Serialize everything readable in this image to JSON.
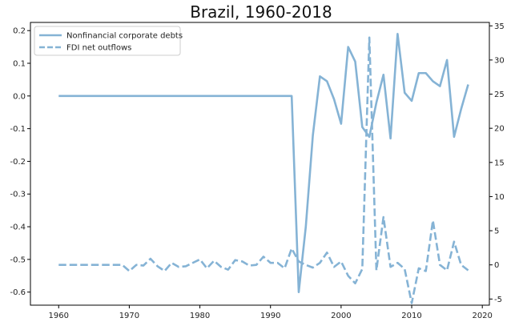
{
  "chart_data": {
    "type": "line",
    "title": "Brazil, 1960-2018",
    "x_ticks": [
      1960,
      1970,
      1980,
      1990,
      2000,
      2010,
      2020
    ],
    "xlim": [
      1956,
      2021
    ],
    "y_left": {
      "lim": [
        -0.64,
        0.225
      ],
      "ticks": [
        -0.6,
        -0.5,
        -0.4,
        -0.3,
        -0.2,
        -0.1,
        0.0,
        0.1,
        0.2
      ]
    },
    "y_right": {
      "lim": [
        -5.9,
        35.5
      ],
      "ticks": [
        -5,
        0,
        5,
        10,
        15,
        20,
        25,
        30,
        35
      ]
    },
    "legend_position": "upper-left",
    "color": "#85b3d5",
    "series": [
      {
        "name": "Nonfinancial corporate debts",
        "axis": "left",
        "style": "solid",
        "x": [
          1960,
          1961,
          1962,
          1963,
          1964,
          1965,
          1966,
          1967,
          1968,
          1969,
          1970,
          1971,
          1972,
          1973,
          1974,
          1975,
          1976,
          1977,
          1978,
          1979,
          1980,
          1981,
          1982,
          1983,
          1984,
          1985,
          1986,
          1987,
          1988,
          1989,
          1990,
          1991,
          1992,
          1993,
          1994,
          1995,
          1996,
          1997,
          1998,
          1999,
          2000,
          2001,
          2002,
          2003,
          2004,
          2005,
          2006,
          2007,
          2008,
          2009,
          2010,
          2011,
          2012,
          2013,
          2014,
          2015,
          2016,
          2017,
          2018
        ],
        "y": [
          0,
          0,
          0,
          0,
          0,
          0,
          0,
          0,
          0,
          0,
          0,
          0,
          0,
          0,
          0,
          0,
          0,
          0,
          0,
          0,
          0,
          0,
          0,
          0,
          0,
          0,
          0,
          0,
          0,
          0,
          0,
          0,
          0,
          0,
          -0.6,
          -0.4,
          -0.12,
          0.06,
          0.045,
          -0.01,
          -0.085,
          0.15,
          0.105,
          -0.095,
          -0.125,
          -0.02,
          0.065,
          -0.13,
          0.19,
          0.01,
          -0.015,
          0.07,
          0.07,
          0.045,
          0.03,
          0.11,
          -0.125,
          -0.04,
          0.035
        ]
      },
      {
        "name": "FDI net outflows",
        "axis": "right",
        "style": "dashed",
        "x": [
          1960,
          1961,
          1962,
          1963,
          1964,
          1965,
          1966,
          1967,
          1968,
          1969,
          1970,
          1971,
          1972,
          1973,
          1974,
          1975,
          1976,
          1977,
          1978,
          1979,
          1980,
          1981,
          1982,
          1983,
          1984,
          1985,
          1986,
          1987,
          1988,
          1989,
          1990,
          1991,
          1992,
          1993,
          1994,
          1995,
          1996,
          1997,
          1998,
          1999,
          2000,
          2001,
          2002,
          2003,
          2004,
          2005,
          2006,
          2007,
          2008,
          2009,
          2010,
          2011,
          2012,
          2013,
          2014,
          2015,
          2016,
          2017,
          2018
        ],
        "y": [
          0,
          0,
          0,
          0,
          0,
          0,
          0,
          0,
          0,
          0,
          -0.9,
          0,
          -0.1,
          0.9,
          -0.2,
          -0.9,
          0.3,
          -0.3,
          -0.2,
          0.3,
          0.8,
          -0.5,
          0.6,
          -0.3,
          -0.7,
          0.7,
          0.5,
          -0.1,
          0,
          1.2,
          0.3,
          0.3,
          -0.5,
          2.4,
          0.5,
          0,
          -0.4,
          0.3,
          1.8,
          -0.3,
          0.5,
          -1.6,
          -2.7,
          -0.6,
          33.3,
          -0.8,
          7,
          -0.3,
          0.3,
          -0.6,
          -5.6,
          -0.5,
          -0.9,
          6.5,
          0,
          -0.8,
          3.4,
          0,
          -0.8
        ]
      }
    ]
  }
}
